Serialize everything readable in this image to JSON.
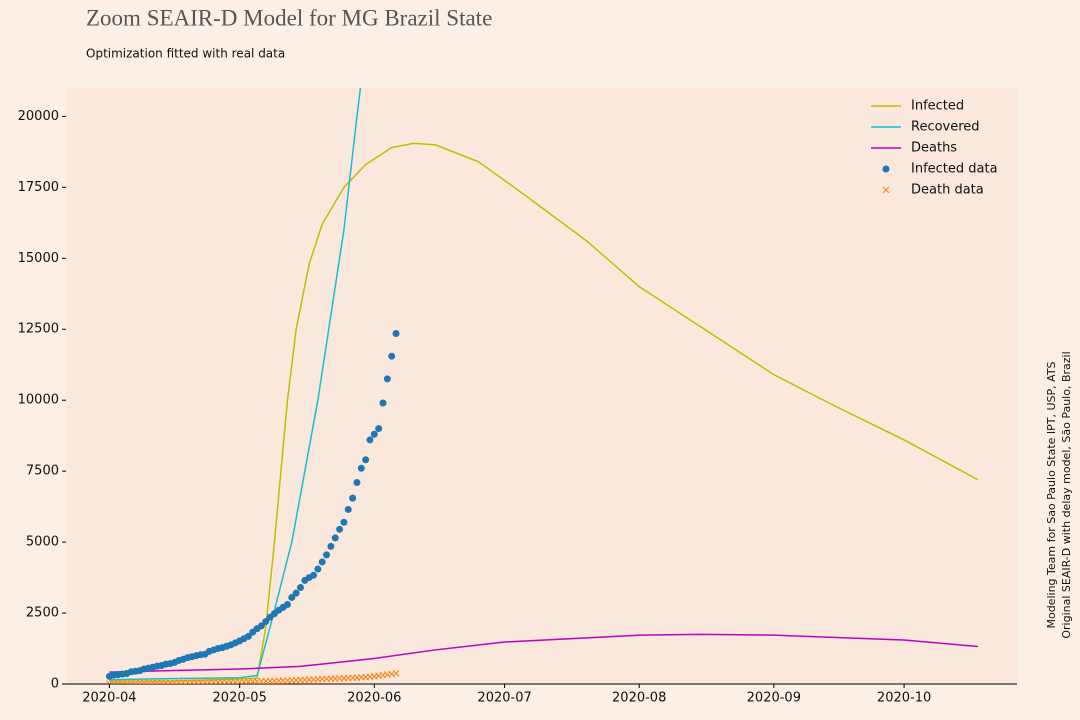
{
  "chart_data": {
    "type": "line",
    "title": "Zoom SEAIR-D Model for MG Brazil State",
    "subtitle": "Optimization fitted with real data",
    "footnotes": [
      "Modeling Team for Sao Paulo State IPT, USP, ATS",
      "Original SEAIR-D with delay model, São Paulo, Brazil"
    ],
    "xlim": [
      "2020-03-22",
      "2020-10-27"
    ],
    "ylim": [
      0,
      21000
    ],
    "xticks": [
      {
        "value": "2020-04-01",
        "label": "2020-04"
      },
      {
        "value": "2020-05-01",
        "label": "2020-05"
      },
      {
        "value": "2020-06-01",
        "label": "2020-06"
      },
      {
        "value": "2020-07-01",
        "label": "2020-07"
      },
      {
        "value": "2020-08-01",
        "label": "2020-08"
      },
      {
        "value": "2020-09-01",
        "label": "2020-09"
      },
      {
        "value": "2020-10-01",
        "label": "2020-10"
      }
    ],
    "yticks": [
      0,
      2500,
      5000,
      7500,
      10000,
      12500,
      15000,
      17500,
      20000
    ],
    "grid": false,
    "legend": "upper right",
    "series": [
      {
        "name": "Infected",
        "color": "#c4bc00",
        "kind": "line",
        "x": [
          "2020-04-01",
          "2020-04-15",
          "2020-04-25",
          "2020-05-01",
          "2020-05-05",
          "2020-05-07",
          "2020-05-09",
          "2020-05-12",
          "2020-05-14",
          "2020-05-17",
          "2020-05-20",
          "2020-05-25",
          "2020-05-30",
          "2020-06-05",
          "2020-06-10",
          "2020-06-15",
          "2020-06-25",
          "2020-07-05",
          "2020-07-20",
          "2020-08-01",
          "2020-08-15",
          "2020-09-01",
          "2020-09-15",
          "2020-10-01",
          "2020-10-18"
        ],
        "values": [
          100,
          100,
          150,
          180,
          200,
          2000,
          5000,
          10000,
          12500,
          14800,
          16200,
          17500,
          18300,
          18900,
          19050,
          19000,
          18400,
          17300,
          15600,
          14000,
          12600,
          10900,
          9800,
          8600,
          7200
        ]
      },
      {
        "name": "Recovered",
        "color": "#17becf",
        "kind": "line",
        "x": [
          "2020-04-01",
          "2020-04-15",
          "2020-05-01",
          "2020-05-05",
          "2020-05-08",
          "2020-05-10",
          "2020-05-13",
          "2020-05-16",
          "2020-05-19",
          "2020-05-22",
          "2020-05-25",
          "2020-05-28",
          "2020-06-01"
        ],
        "values": [
          150,
          190,
          220,
          300,
          2000,
          3200,
          5000,
          7500,
          10000,
          13000,
          16000,
          20000,
          25000
        ]
      },
      {
        "name": "Deaths",
        "color": "#bf00bf",
        "kind": "line",
        "x": [
          "2020-04-01",
          "2020-05-01",
          "2020-05-15",
          "2020-06-01",
          "2020-06-15",
          "2020-07-01",
          "2020-08-01",
          "2020-08-15",
          "2020-09-01",
          "2020-10-01",
          "2020-10-18"
        ],
        "values": [
          420,
          530,
          620,
          900,
          1200,
          1480,
          1720,
          1750,
          1720,
          1550,
          1320
        ]
      },
      {
        "name": "Infected data",
        "color": "#1f77b4",
        "kind": "scatter",
        "marker": "o",
        "x": [
          "2020-04-01",
          "2020-04-02",
          "2020-04-03",
          "2020-04-04",
          "2020-04-05",
          "2020-04-06",
          "2020-04-07",
          "2020-04-08",
          "2020-04-09",
          "2020-04-10",
          "2020-04-11",
          "2020-04-12",
          "2020-04-13",
          "2020-04-14",
          "2020-04-15",
          "2020-04-16",
          "2020-04-17",
          "2020-04-18",
          "2020-04-19",
          "2020-04-20",
          "2020-04-21",
          "2020-04-22",
          "2020-04-23",
          "2020-04-24",
          "2020-04-25",
          "2020-04-26",
          "2020-04-27",
          "2020-04-28",
          "2020-04-29",
          "2020-04-30",
          "2020-05-01",
          "2020-05-02",
          "2020-05-03",
          "2020-05-04",
          "2020-05-05",
          "2020-05-06",
          "2020-05-07",
          "2020-05-08",
          "2020-05-09",
          "2020-05-10",
          "2020-05-11",
          "2020-05-12",
          "2020-05-13",
          "2020-05-14",
          "2020-05-15",
          "2020-05-16",
          "2020-05-17",
          "2020-05-18",
          "2020-05-19",
          "2020-05-20",
          "2020-05-21",
          "2020-05-22",
          "2020-05-23",
          "2020-05-24",
          "2020-05-25",
          "2020-05-26",
          "2020-05-27",
          "2020-05-28",
          "2020-05-29",
          "2020-05-30",
          "2020-05-31",
          "2020-06-01",
          "2020-06-02",
          "2020-06-03",
          "2020-06-04",
          "2020-06-05",
          "2020-06-06"
        ],
        "values": [
          270,
          314,
          330,
          350,
          370,
          430,
          450,
          470,
          530,
          560,
          590,
          630,
          650,
          700,
          720,
          760,
          830,
          870,
          930,
          960,
          1000,
          1030,
          1050,
          1150,
          1200,
          1250,
          1280,
          1330,
          1380,
          1450,
          1520,
          1600,
          1680,
          1830,
          1950,
          2050,
          2200,
          2350,
          2480,
          2600,
          2700,
          2800,
          3050,
          3200,
          3400,
          3650,
          3750,
          3830,
          4050,
          4300,
          4550,
          4850,
          5150,
          5450,
          5700,
          6150,
          6550,
          7100,
          7600,
          7900,
          8600,
          8800,
          9000,
          9900,
          10750,
          11550,
          12350
        ]
      },
      {
        "name": "Death data",
        "color": "#ff7f0e",
        "kind": "scatter",
        "marker": "x",
        "x": [
          "2020-04-01",
          "2020-04-02",
          "2020-04-03",
          "2020-04-04",
          "2020-04-05",
          "2020-04-06",
          "2020-04-07",
          "2020-04-08",
          "2020-04-09",
          "2020-04-10",
          "2020-04-11",
          "2020-04-12",
          "2020-04-13",
          "2020-04-14",
          "2020-04-15",
          "2020-04-16",
          "2020-04-17",
          "2020-04-18",
          "2020-04-19",
          "2020-04-20",
          "2020-04-21",
          "2020-04-22",
          "2020-04-23",
          "2020-04-24",
          "2020-04-25",
          "2020-04-26",
          "2020-04-27",
          "2020-04-28",
          "2020-04-29",
          "2020-04-30",
          "2020-05-01",
          "2020-05-02",
          "2020-05-03",
          "2020-05-04",
          "2020-05-05",
          "2020-05-06",
          "2020-05-07",
          "2020-05-08",
          "2020-05-09",
          "2020-05-10",
          "2020-05-11",
          "2020-05-12",
          "2020-05-13",
          "2020-05-14",
          "2020-05-15",
          "2020-05-16",
          "2020-05-17",
          "2020-05-18",
          "2020-05-19",
          "2020-05-20",
          "2020-05-21",
          "2020-05-22",
          "2020-05-23",
          "2020-05-24",
          "2020-05-25",
          "2020-05-26",
          "2020-05-27",
          "2020-05-28",
          "2020-05-29",
          "2020-05-30",
          "2020-05-31",
          "2020-06-01",
          "2020-06-02",
          "2020-06-03",
          "2020-06-04",
          "2020-06-05",
          "2020-06-06"
        ],
        "values": [
          10,
          12,
          14,
          16,
          18,
          20,
          22,
          24,
          26,
          28,
          30,
          32,
          34,
          36,
          38,
          40,
          42,
          44,
          46,
          48,
          50,
          52,
          54,
          56,
          58,
          60,
          62,
          64,
          66,
          68,
          72,
          76,
          80,
          85,
          90,
          95,
          100,
          105,
          110,
          115,
          120,
          125,
          130,
          136,
          142,
          148,
          154,
          160,
          166,
          172,
          178,
          184,
          190,
          196,
          202,
          210,
          218,
          226,
          234,
          242,
          250,
          270,
          290,
          310,
          330,
          355,
          380
        ]
      }
    ]
  }
}
